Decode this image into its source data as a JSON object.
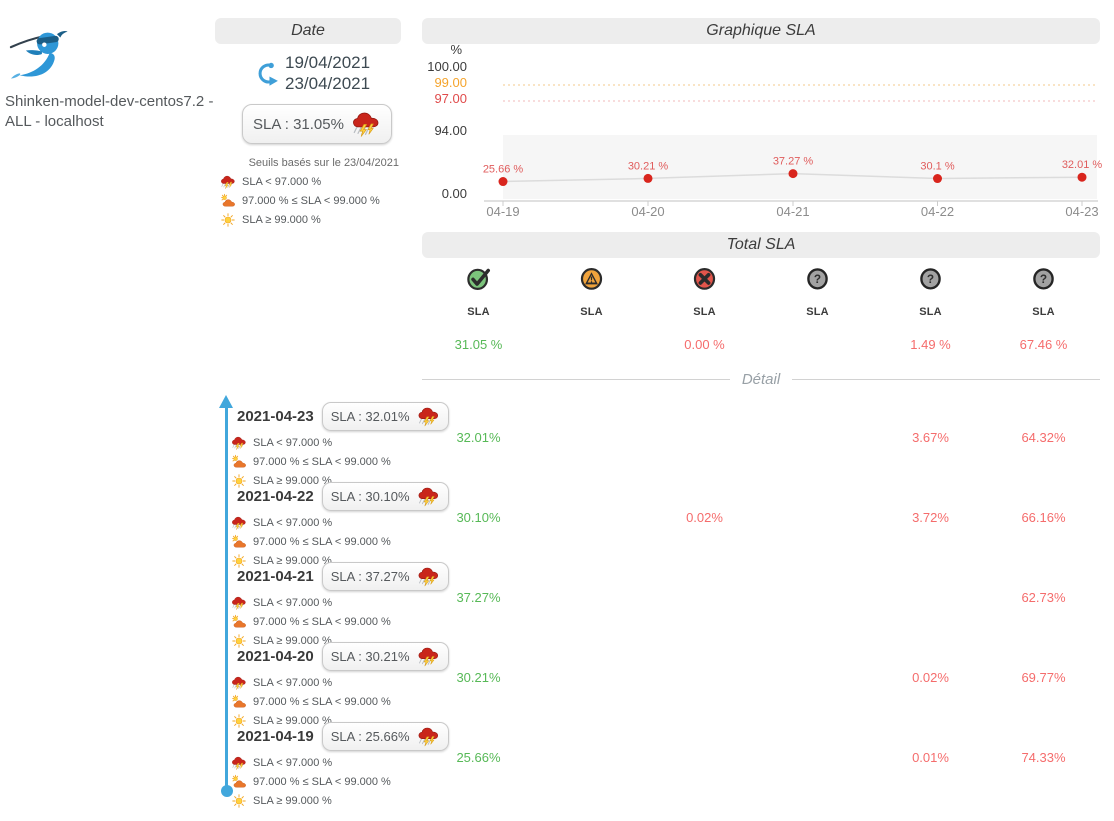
{
  "brand": {
    "title": "Shinken-model-dev-centos7.2 - ALL - localhost"
  },
  "date_panel": {
    "header": "Date",
    "date_from": "19/04/2021",
    "date_to": "23/04/2021",
    "sla_badge": "SLA : 31.05%",
    "caption": "Seuils basés sur le 23/04/2021"
  },
  "thresholds_legend": [
    {
      "icon": "storm-icon",
      "label": "SLA < 97.000 %"
    },
    {
      "icon": "partly-cloudy-icon",
      "label": "97.000 % ≤ SLA < 99.000 %"
    },
    {
      "icon": "sunny-icon",
      "label": "SLA ≥ 99.000 %"
    }
  ],
  "chart_data": {
    "type": "line",
    "title": "Graphique SLA",
    "x": [
      "04-19",
      "04-20",
      "04-21",
      "04-22",
      "04-23"
    ],
    "series": [
      {
        "name": "SLA",
        "values": [
          25.66,
          30.21,
          37.27,
          30.1,
          32.01
        ]
      }
    ],
    "point_labels": [
      "25.66 %",
      "30.21 %",
      "37.27 %",
      "30.1 %",
      "32.01 %"
    ],
    "y_axis": {
      "label": "%",
      "broken_axis": true,
      "ticks": [
        {
          "value": 100,
          "label": "100.00",
          "color": "#3c3c3c"
        },
        {
          "value": 99,
          "label": "99.00",
          "color": "#f5a42c"
        },
        {
          "value": 97,
          "label": "97.00",
          "color": "#e04b4b"
        },
        {
          "value": 94,
          "label": "94.00",
          "color": "#3c3c3c"
        },
        {
          "value": 0,
          "label": "0.00",
          "color": "#3c3c3c"
        }
      ]
    },
    "thresholds": [
      {
        "value": 99,
        "color": "#f3c98b",
        "style": "dotted"
      },
      {
        "value": 97,
        "color": "#f0b8b8",
        "style": "dotted"
      }
    ],
    "grid": false,
    "legend_position": "none",
    "point_color": "#d9251d",
    "line_color": "#dcdcdc",
    "label_color": "#e05c5c"
  },
  "total": {
    "header": "Total SLA",
    "columns": [
      {
        "icon": "ok-icon",
        "label": "SLA",
        "value": "31.05 %",
        "state": "green"
      },
      {
        "icon": "warning-icon",
        "label": "SLA",
        "value": "",
        "state": ""
      },
      {
        "icon": "critical-icon",
        "label": "SLA",
        "value": "0.00 %",
        "state": "red"
      },
      {
        "icon": "unknown-icon",
        "label": "SLA",
        "value": "",
        "state": ""
      },
      {
        "icon": "unknown-icon",
        "label": "SLA",
        "value": "1.49 %",
        "state": "red"
      },
      {
        "icon": "unknown-icon",
        "label": "SLA",
        "value": "67.46 %",
        "state": "red"
      }
    ]
  },
  "detail": {
    "divider": "Détail",
    "rows": [
      {
        "date": "2021-04-23",
        "badge": "SLA : 32.01%",
        "values": [
          "32.01%",
          "",
          "",
          "",
          "3.67%",
          "64.32%"
        ]
      },
      {
        "date": "2021-04-22",
        "badge": "SLA : 30.10%",
        "values": [
          "30.10%",
          "",
          "0.02%",
          "",
          "3.72%",
          "66.16%"
        ]
      },
      {
        "date": "2021-04-21",
        "badge": "SLA : 37.27%",
        "values": [
          "37.27%",
          "",
          "",
          "",
          "",
          "62.73%"
        ]
      },
      {
        "date": "2021-04-20",
        "badge": "SLA : 30.21%",
        "values": [
          "30.21%",
          "",
          "",
          "",
          "0.02%",
          "69.77%"
        ]
      },
      {
        "date": "2021-04-19",
        "badge": "SLA : 25.66%",
        "values": [
          "25.66%",
          "",
          "",
          "",
          "0.01%",
          "74.33%"
        ]
      }
    ]
  },
  "icons": {
    "shinken-logo": "blue ninja fish with sword",
    "refresh-icon": "⟳",
    "storm-icon": "⛈",
    "partly-cloudy-icon": "⛅",
    "sunny-icon": "☀",
    "ok-icon": "✔",
    "warning-icon": "▲",
    "critical-icon": "✖",
    "unknown-icon": "?"
  },
  "colors": {
    "green": "#57b957",
    "red": "#f56c6c",
    "timeline_blue": "#41a7dc",
    "accent_blue": "#3f9fd8"
  }
}
